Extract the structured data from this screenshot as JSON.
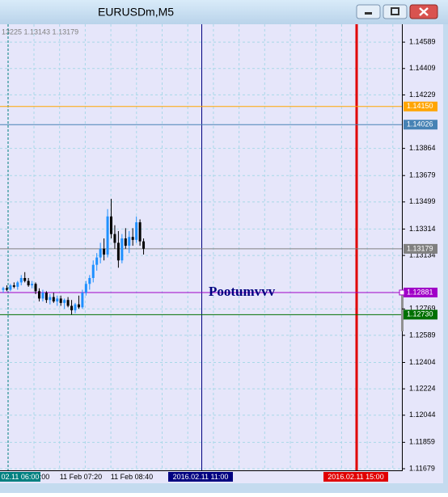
{
  "window": {
    "title": "EURUSDm,M5"
  },
  "chart_data": {
    "type": "candlestick",
    "info": "13225 1.13143 1.13179",
    "up_color": "#1e90ff",
    "down_color": "#000000",
    "open": [
      1.129,
      1.1291,
      1.129,
      1.1293,
      1.1292,
      1.1295,
      1.1298,
      1.1296,
      1.1293,
      1.1294,
      1.1289,
      1.1284,
      1.1288,
      1.1283,
      1.1285,
      1.1282,
      1.1284,
      1.1281,
      1.1283,
      1.1279,
      1.1276,
      1.128,
      1.1278,
      1.1288,
      1.1294,
      1.1298,
      1.1307,
      1.1312,
      1.1318,
      1.1314,
      1.134,
      1.1328,
      1.1322,
      1.131,
      1.1325,
      1.132,
      1.1326,
      1.1324,
      1.1336,
      1.1323
    ],
    "high": [
      1.1292,
      1.1293,
      1.1294,
      1.1295,
      1.1296,
      1.13,
      1.1302,
      1.1298,
      1.1296,
      1.1295,
      1.1291,
      1.129,
      1.1289,
      1.1287,
      1.1288,
      1.1286,
      1.1286,
      1.1284,
      1.1285,
      1.1283,
      1.1281,
      1.1286,
      1.129,
      1.1296,
      1.13,
      1.131,
      1.1315,
      1.1322,
      1.1325,
      1.1345,
      1.1352,
      1.1334,
      1.133,
      1.1328,
      1.1332,
      1.133,
      1.1332,
      1.134,
      1.1338,
      1.1325
    ],
    "low": [
      1.1288,
      1.1289,
      1.1289,
      1.1291,
      1.129,
      1.1293,
      1.1295,
      1.1292,
      1.1291,
      1.1287,
      1.1282,
      1.1282,
      1.1281,
      1.128,
      1.1281,
      1.1279,
      1.1279,
      1.1277,
      1.1278,
      1.1273,
      1.1274,
      1.1277,
      1.1277,
      1.1286,
      1.129,
      1.1295,
      1.1303,
      1.1308,
      1.131,
      1.1312,
      1.1325,
      1.1318,
      1.1305,
      1.1308,
      1.1318,
      1.1315,
      1.132,
      1.1322,
      1.132,
      1.1314
    ],
    "close": [
      1.1291,
      1.129,
      1.1293,
      1.1292,
      1.1295,
      1.1298,
      1.1296,
      1.1293,
      1.1294,
      1.1289,
      1.1284,
      1.1288,
      1.1283,
      1.1285,
      1.1282,
      1.1284,
      1.1281,
      1.1283,
      1.1279,
      1.1276,
      1.128,
      1.1278,
      1.1288,
      1.1294,
      1.1298,
      1.1307,
      1.1312,
      1.1318,
      1.1314,
      1.134,
      1.1328,
      1.1322,
      1.131,
      1.1325,
      1.132,
      1.1326,
      1.1324,
      1.1336,
      1.1323,
      1.1318
    ],
    "ylim": [
      1.11668,
      1.14711
    ],
    "yticks": [
      1.14589,
      1.14409,
      1.14229,
      1.13864,
      1.13679,
      1.13499,
      1.13314,
      1.13134,
      1.12769,
      1.12589,
      1.12404,
      1.12224,
      1.12044,
      1.11859,
      1.11679
    ],
    "grid": true,
    "hlines": [
      {
        "value": 1.1415,
        "label": "1.14150",
        "color": "#ffa500"
      },
      {
        "value": 1.14026,
        "label": "1.14026",
        "color": "#4682b4"
      },
      {
        "value": 1.13179,
        "label": "1.13179",
        "color": "#808080"
      },
      {
        "value": 1.12881,
        "label": "1.12881",
        "color": "#a000c8"
      },
      {
        "value": 1.1273,
        "label": "1.12730",
        "color": "#007000"
      }
    ],
    "annotation": "Pootumvvv",
    "vlines": [
      {
        "label": "02.11 06:00",
        "color": "#008080"
      },
      {
        "label": "2016.02.11 11:00",
        "color": "#000080"
      },
      {
        "label": "2016.02.11 15:00",
        "color": "#e00000"
      }
    ],
    "time_labels": [
      ":00",
      "11 Feb 07:20",
      "11 Feb 08:40"
    ]
  }
}
